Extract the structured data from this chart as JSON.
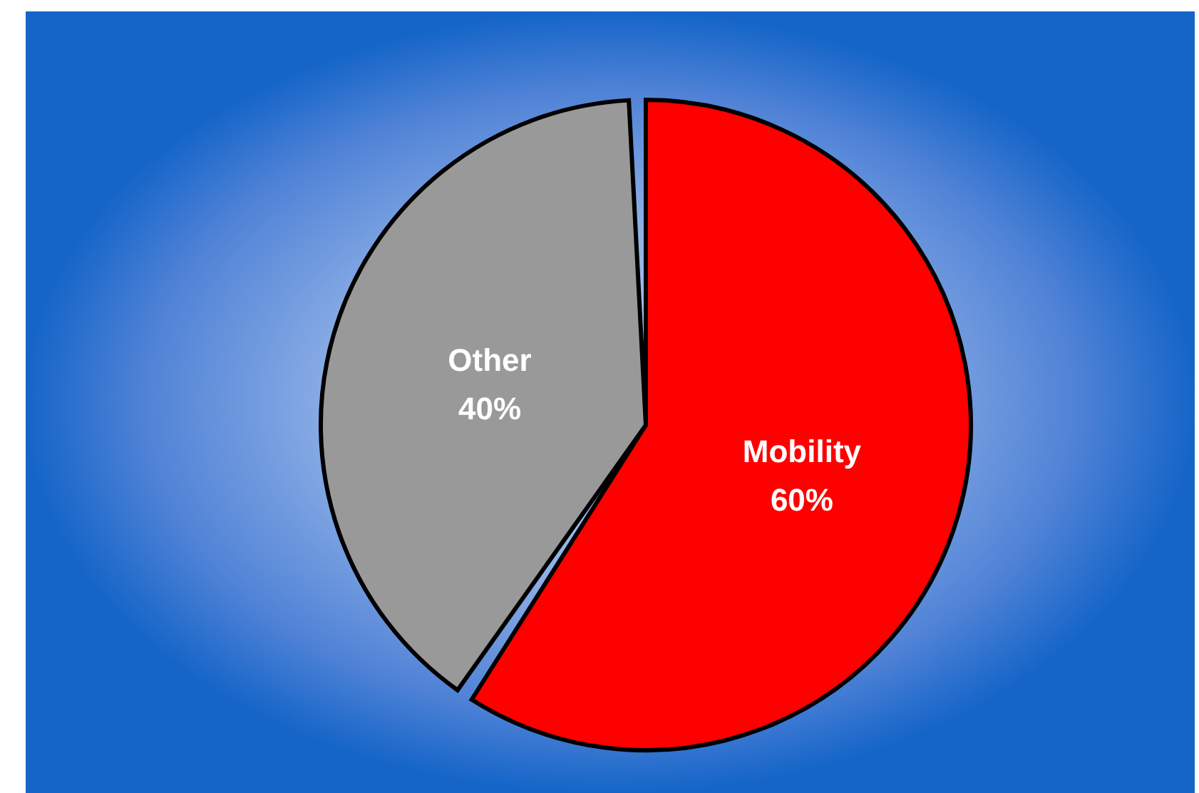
{
  "chart_data": {
    "type": "pie",
    "categories": [
      "Mobility",
      "Other"
    ],
    "values": [
      60,
      40
    ],
    "colors": [
      "#ff0000",
      "#999999"
    ],
    "value_labels": [
      "60%",
      "40%"
    ]
  }
}
